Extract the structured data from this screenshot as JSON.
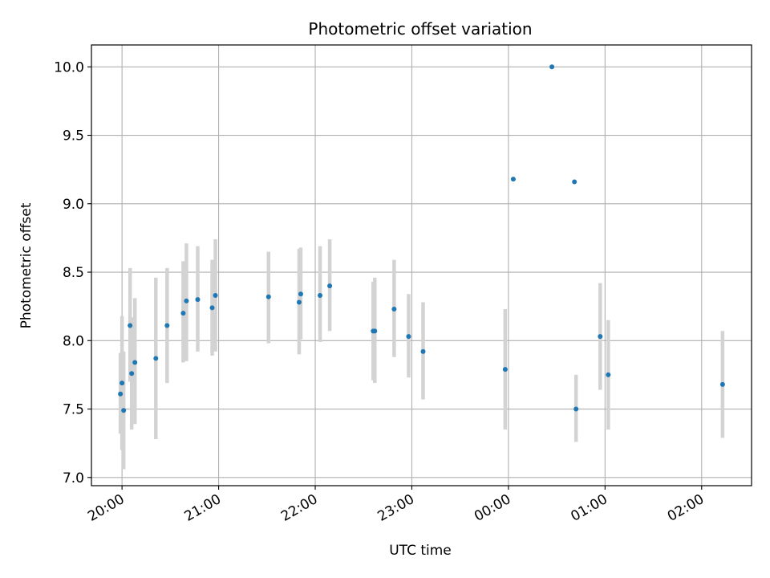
{
  "chart_data": {
    "type": "scatter",
    "title": "Photometric offset variation",
    "xlabel": "UTC time",
    "ylabel": "Photometric offset",
    "xlim": [
      "2000-01-01T19:41",
      "2000-01-02T02:31"
    ],
    "ylim": [
      6.94,
      10.16
    ],
    "x_ticks": [
      {
        "t": "2000-01-01T20:00",
        "label": "20:00"
      },
      {
        "t": "2000-01-01T21:00",
        "label": "21:00"
      },
      {
        "t": "2000-01-01T22:00",
        "label": "22:00"
      },
      {
        "t": "2000-01-01T23:00",
        "label": "23:00"
      },
      {
        "t": "2000-01-02T00:00",
        "label": "00:00"
      },
      {
        "t": "2000-01-02T01:00",
        "label": "01:00"
      },
      {
        "t": "2000-01-02T02:00",
        "label": "02:00"
      }
    ],
    "y_ticks": [
      {
        "v": 7.0,
        "label": "7.0"
      },
      {
        "v": 7.5,
        "label": "7.5"
      },
      {
        "v": 8.0,
        "label": "8.0"
      },
      {
        "v": 8.5,
        "label": "8.5"
      },
      {
        "v": 9.0,
        "label": "9.0"
      },
      {
        "v": 9.5,
        "label": "9.5"
      },
      {
        "v": 10.0,
        "label": "10.0"
      }
    ],
    "grid": true,
    "point_color": "#1f77b4",
    "errorbar_color": "#d3d3d3",
    "points": [
      {
        "t": "2000-01-01T19:59",
        "y": 7.61,
        "lo": 7.32,
        "hi": 7.91
      },
      {
        "t": "2000-01-01T20:00",
        "y": 7.69,
        "lo": 7.2,
        "hi": 8.18
      },
      {
        "t": "2000-01-01T20:01",
        "y": 7.49,
        "lo": 7.06,
        "hi": 7.92
      },
      {
        "t": "2000-01-01T20:05",
        "y": 8.11,
        "lo": 7.7,
        "hi": 8.53
      },
      {
        "t": "2000-01-01T20:06",
        "y": 7.76,
        "lo": 7.35,
        "hi": 8.17
      },
      {
        "t": "2000-01-01T20:08",
        "y": 7.84,
        "lo": 7.39,
        "hi": 8.31
      },
      {
        "t": "2000-01-01T20:21",
        "y": 7.87,
        "lo": 7.28,
        "hi": 8.46
      },
      {
        "t": "2000-01-01T20:28",
        "y": 8.11,
        "lo": 7.69,
        "hi": 8.53
      },
      {
        "t": "2000-01-01T20:38",
        "y": 8.2,
        "lo": 7.84,
        "hi": 8.58
      },
      {
        "t": "2000-01-01T20:40",
        "y": 8.29,
        "lo": 7.85,
        "hi": 8.71
      },
      {
        "t": "2000-01-01T20:47",
        "y": 8.3,
        "lo": 7.92,
        "hi": 8.69
      },
      {
        "t": "2000-01-01T20:56",
        "y": 8.24,
        "lo": 7.89,
        "hi": 8.59
      },
      {
        "t": "2000-01-01T20:58",
        "y": 8.33,
        "lo": 7.92,
        "hi": 8.74
      },
      {
        "t": "2000-01-01T21:31",
        "y": 8.32,
        "lo": 7.98,
        "hi": 8.65
      },
      {
        "t": "2000-01-01T21:50",
        "y": 8.28,
        "lo": 7.9,
        "hi": 8.67
      },
      {
        "t": "2000-01-01T21:51",
        "y": 8.34,
        "lo": 8.01,
        "hi": 8.68
      },
      {
        "t": "2000-01-01T22:03",
        "y": 8.33,
        "lo": 7.99,
        "hi": 8.69
      },
      {
        "t": "2000-01-01T22:09",
        "y": 8.4,
        "lo": 8.07,
        "hi": 8.74
      },
      {
        "t": "2000-01-01T22:36",
        "y": 8.07,
        "lo": 7.71,
        "hi": 8.43
      },
      {
        "t": "2000-01-01T22:37",
        "y": 8.07,
        "lo": 7.69,
        "hi": 8.46
      },
      {
        "t": "2000-01-01T22:49",
        "y": 8.23,
        "lo": 7.88,
        "hi": 8.59
      },
      {
        "t": "2000-01-01T22:58",
        "y": 8.03,
        "lo": 7.73,
        "hi": 8.34
      },
      {
        "t": "2000-01-01T23:07",
        "y": 7.92,
        "lo": 7.57,
        "hi": 8.28
      },
      {
        "t": "2000-01-01T23:58",
        "y": 7.79,
        "lo": 7.35,
        "hi": 8.23
      },
      {
        "t": "2000-01-02T00:03",
        "y": 9.18,
        "lo": 9.18,
        "hi": 9.18
      },
      {
        "t": "2000-01-02T00:27",
        "y": 10.0,
        "lo": 10.0,
        "hi": 10.0
      },
      {
        "t": "2000-01-02T00:41",
        "y": 9.16,
        "lo": 9.16,
        "hi": 9.16
      },
      {
        "t": "2000-01-02T00:42",
        "y": 7.5,
        "lo": 7.26,
        "hi": 7.75
      },
      {
        "t": "2000-01-02T00:57",
        "y": 8.03,
        "lo": 7.64,
        "hi": 8.42
      },
      {
        "t": "2000-01-02T01:02",
        "y": 7.75,
        "lo": 7.35,
        "hi": 8.15
      },
      {
        "t": "2000-01-02T02:13",
        "y": 7.68,
        "lo": 7.29,
        "hi": 8.07
      }
    ]
  }
}
